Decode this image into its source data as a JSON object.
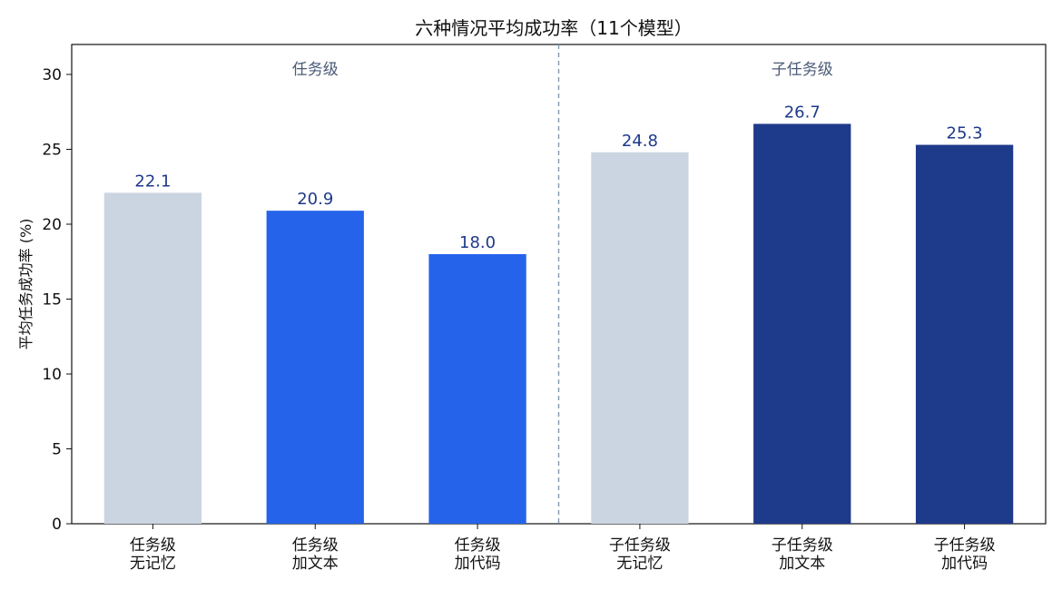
{
  "chart_data": {
    "type": "bar",
    "title": "六种情况平均成功率（11个模型）",
    "ylabel": "平均任务成功率 (%)",
    "xlabel": "",
    "ylim": [
      0,
      32
    ],
    "yticks": [
      0,
      5,
      10,
      15,
      20,
      25,
      30
    ],
    "grid": false,
    "groups": [
      {
        "label": "任务级",
        "count": 3
      },
      {
        "label": "子任务级",
        "count": 3
      }
    ],
    "categories": [
      [
        "任务级",
        "无记忆"
      ],
      [
        "任务级",
        "加文本"
      ],
      [
        "任务级",
        "加代码"
      ],
      [
        "子任务级",
        "无记忆"
      ],
      [
        "子任务级",
        "加文本"
      ],
      [
        "子任务级",
        "加代码"
      ]
    ],
    "values": [
      22.1,
      20.9,
      18.0,
      24.8,
      26.7,
      25.3
    ],
    "value_labels": [
      "22.1",
      "20.9",
      "18.0",
      "24.8",
      "26.7",
      "25.3"
    ],
    "bar_colors": [
      "#cbd5e1",
      "#2563eb",
      "#2563eb",
      "#cbd5e1",
      "#1e3a8a",
      "#1e3a8a"
    ],
    "value_label_color": "#1e3a8a",
    "divider_color": "#8496b0"
  }
}
